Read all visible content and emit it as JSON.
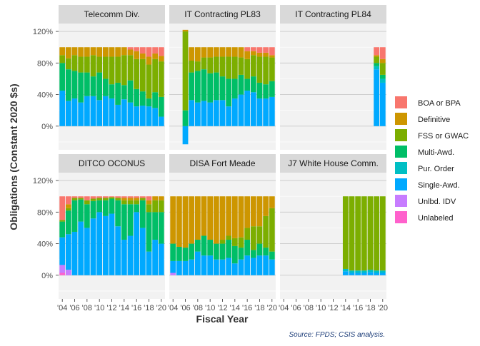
{
  "chart_data": {
    "type": "bar",
    "stacked": true,
    "faceted": true,
    "xlabel": "Fiscal Year",
    "ylabel": "Obligations (Constant 2020 $s)",
    "caption": "Source: FPDS; CSIS analysis.",
    "ylim": [
      -0.3,
      1.3
    ],
    "y_ticks": [
      0,
      0.4,
      0.8,
      1.2
    ],
    "y_tick_labels": [
      "0%",
      "40%",
      "80%",
      "120%"
    ],
    "x": [
      2004,
      2005,
      2006,
      2007,
      2008,
      2009,
      2010,
      2011,
      2012,
      2013,
      2014,
      2015,
      2016,
      2017,
      2018,
      2019,
      2020
    ],
    "x_ticks": [
      2004,
      2006,
      2008,
      2010,
      2012,
      2014,
      2016,
      2018,
      2020
    ],
    "x_tick_labels": [
      "'04",
      "'06",
      "'08",
      "'10",
      "'12",
      "'14",
      "'16",
      "'18",
      "'20"
    ],
    "legend": {
      "position": "right",
      "entries": [
        "BOA or BPA",
        "Definitive",
        "FSS or GWAC",
        "Multi-Awd.",
        "Pur. Order",
        "Single-Awd.",
        "Unlbd. IDV",
        "Unlabeled"
      ]
    },
    "colors": {
      "BOA or BPA": "#F8766D",
      "Definitive": "#CD9600",
      "FSS or GWAC": "#7CAE00",
      "Multi-Awd.": "#00BE67",
      "Pur. Order": "#00BFC4",
      "Single-Awd.": "#00A9FF",
      "Unlbd. IDV": "#C77CFF",
      "Unlabeled": "#FF61CC"
    },
    "panels": [
      {
        "title": "Telecomm Div.",
        "series": {
          "Unlabeled": [
            0,
            0,
            0,
            0,
            0,
            0,
            0,
            0,
            0,
            0,
            0,
            0,
            0,
            0,
            0,
            0,
            0
          ],
          "Unlbd. IDV": [
            0,
            0,
            0,
            0,
            0,
            0,
            0,
            0,
            0,
            0,
            0,
            0,
            0,
            0,
            0,
            0,
            0
          ],
          "Single-Awd.": [
            0.45,
            0.32,
            0.35,
            0.3,
            0.38,
            0.38,
            0.33,
            0.38,
            0.35,
            0.27,
            0.34,
            0.3,
            0.25,
            0.26,
            0.25,
            0.23,
            0.12
          ],
          "Pur. Order": [
            0,
            0,
            0,
            0,
            0,
            0,
            0,
            0,
            0,
            0,
            0,
            0,
            0,
            0,
            0,
            0,
            0
          ],
          "Multi-Awd.": [
            0.35,
            0.4,
            0.35,
            0.38,
            0.3,
            0.25,
            0.35,
            0.22,
            0.18,
            0.28,
            0.18,
            0.28,
            0.22,
            0.18,
            0.1,
            0.2,
            0.25
          ],
          "FSS or GWAC": [
            0.1,
            0.14,
            0.2,
            0.2,
            0.2,
            0.27,
            0.2,
            0.28,
            0.35,
            0.33,
            0.38,
            0.32,
            0.38,
            0.41,
            0.43,
            0.42,
            0.45
          ],
          "Definitive": [
            0.1,
            0.14,
            0.1,
            0.12,
            0.12,
            0.1,
            0.12,
            0.12,
            0.12,
            0.12,
            0.1,
            0.07,
            0.1,
            0.07,
            0.1,
            0.07,
            0.07
          ],
          "BOA or BPA": [
            0,
            0,
            0,
            0,
            0,
            0,
            0,
            0,
            0,
            0,
            0,
            0.03,
            0.05,
            0.08,
            0.12,
            0.08,
            0.11
          ]
        }
      },
      {
        "title": "IT Contracting PL83",
        "series": {
          "Unlabeled": [
            0,
            0,
            0,
            0,
            0,
            0,
            0,
            0,
            0,
            0,
            0,
            0,
            0,
            0,
            0,
            0,
            0
          ],
          "Unlbd. IDV": [
            0,
            0,
            0,
            0,
            0,
            0,
            0,
            0,
            0,
            0,
            0,
            0,
            0,
            0,
            0,
            0,
            0
          ],
          "Single-Awd.": [
            0,
            0,
            -0.23,
            0.33,
            0.3,
            0.32,
            0.3,
            0.33,
            0.33,
            0.25,
            0.35,
            0.4,
            0.45,
            0.43,
            0.35,
            0.35,
            0.37
          ],
          "Pur. Order": [
            0,
            0,
            0,
            0,
            0,
            0,
            0,
            0,
            0,
            0,
            0,
            0,
            0,
            0,
            0,
            0,
            0
          ],
          "Multi-Awd.": [
            0,
            0,
            0.2,
            0.35,
            0.4,
            0.4,
            0.37,
            0.35,
            0.3,
            0.35,
            0.25,
            0.25,
            0.15,
            0.2,
            0.2,
            0.18,
            0.2
          ],
          "FSS or GWAC": [
            0,
            0,
            1.0,
            0.15,
            0.12,
            0.15,
            0.2,
            0.2,
            0.25,
            0.28,
            0.28,
            0.22,
            0.25,
            0.27,
            0.33,
            0.35,
            0.3
          ],
          "Definitive": [
            0,
            0,
            0.02,
            0.17,
            0.18,
            0.13,
            0.13,
            0.12,
            0.12,
            0.12,
            0.12,
            0.13,
            0.1,
            0.05,
            0.05,
            0.05,
            0.03
          ],
          "BOA or BPA": [
            0,
            0,
            0,
            0,
            0,
            0,
            0,
            0,
            0,
            0,
            0,
            0,
            0.05,
            0.05,
            0.07,
            0.07,
            0.1
          ]
        }
      },
      {
        "title": "IT Contracting PL84",
        "series": {
          "Unlabeled": [
            0,
            0,
            0,
            0,
            0,
            0,
            0,
            0,
            0,
            0,
            0,
            0,
            0,
            0,
            0,
            0,
            0
          ],
          "Unlbd. IDV": [
            0,
            0,
            0,
            0,
            0,
            0,
            0,
            0,
            0,
            0,
            0,
            0,
            0,
            0,
            0,
            0,
            0
          ],
          "Single-Awd.": [
            0,
            0,
            0,
            0,
            0,
            0,
            0,
            0,
            0,
            0,
            0,
            0,
            0,
            0,
            0,
            0.72,
            0.55
          ],
          "Pur. Order": [
            0,
            0,
            0,
            0,
            0,
            0,
            0,
            0,
            0,
            0,
            0,
            0,
            0,
            0,
            0,
            0.04,
            0.05
          ],
          "Multi-Awd.": [
            0,
            0,
            0,
            0,
            0,
            0,
            0,
            0,
            0,
            0,
            0,
            0,
            0,
            0,
            0,
            0.04,
            0.05
          ],
          "FSS or GWAC": [
            0,
            0,
            0,
            0,
            0,
            0,
            0,
            0,
            0,
            0,
            0,
            0,
            0,
            0,
            0,
            0.08,
            0.15
          ],
          "Definitive": [
            0,
            0,
            0,
            0,
            0,
            0,
            0,
            0,
            0,
            0,
            0,
            0,
            0,
            0,
            0,
            0.02,
            0.05
          ],
          "BOA or BPA": [
            0,
            0,
            0,
            0,
            0,
            0,
            0,
            0,
            0,
            0,
            0,
            0,
            0,
            0,
            0,
            0.1,
            0.15
          ]
        }
      },
      {
        "title": "DITCO OCONUS",
        "series": {
          "Unlabeled": [
            0.03,
            0,
            0,
            0,
            0,
            0,
            0,
            0,
            0,
            0,
            0,
            0,
            0,
            0,
            0,
            0,
            0
          ],
          "Unlbd. IDV": [
            0.1,
            0.07,
            0,
            0,
            0,
            0,
            0,
            0,
            0,
            0,
            0,
            0,
            0,
            0,
            0,
            0,
            0
          ],
          "Single-Awd.": [
            0.35,
            0.45,
            0.55,
            0.68,
            0.6,
            0.72,
            0.8,
            0.75,
            0.78,
            0.62,
            0.45,
            0.5,
            0.8,
            0.6,
            0.3,
            0.45,
            0.4
          ],
          "Pur. Order": [
            0,
            0,
            0,
            0,
            0,
            0,
            0,
            0,
            0,
            0,
            0,
            0,
            0,
            0,
            0,
            0,
            0
          ],
          "Multi-Awd.": [
            0.2,
            0.3,
            0.4,
            0.28,
            0.3,
            0.22,
            0.15,
            0.2,
            0.19,
            0.33,
            0.45,
            0.4,
            0.1,
            0.35,
            0.5,
            0.35,
            0.4
          ],
          "FSS or GWAC": [
            0.02,
            0.03,
            0.03,
            0.02,
            0.05,
            0.03,
            0.03,
            0.03,
            0.02,
            0.03,
            0.05,
            0.05,
            0.05,
            0.03,
            0.1,
            0.15,
            0.15
          ],
          "Definitive": [
            0,
            0.05,
            0,
            0,
            0,
            0,
            0,
            0,
            0,
            0,
            0.03,
            0.03,
            0.03,
            0,
            0.05,
            0.05,
            0.05
          ],
          "BOA or BPA": [
            0.3,
            0.1,
            0.02,
            0.02,
            0.05,
            0.03,
            0.02,
            0.02,
            0.01,
            0.02,
            0.02,
            0.02,
            0.02,
            0.02,
            0.05,
            0,
            0
          ]
        }
      },
      {
        "title": "DISA Fort Meade",
        "series": {
          "Unlabeled": [
            0,
            0,
            0,
            0,
            0,
            0,
            0,
            0,
            0,
            0,
            0,
            0,
            0,
            0,
            0,
            0,
            0
          ],
          "Unlbd. IDV": [
            0.03,
            0,
            0,
            0,
            0,
            0,
            0,
            0,
            0,
            0,
            0,
            0,
            0,
            0,
            0,
            0,
            0
          ],
          "Single-Awd.": [
            0.15,
            0.18,
            0.18,
            0.2,
            0.3,
            0.25,
            0.25,
            0.2,
            0.2,
            0.22,
            0.15,
            0.2,
            0.25,
            0.22,
            0.25,
            0.25,
            0.2
          ],
          "Pur. Order": [
            0,
            0,
            0,
            0,
            0,
            0,
            0,
            0,
            0,
            0,
            0,
            0,
            0,
            0,
            0,
            0,
            0
          ],
          "Multi-Awd.": [
            0.22,
            0.18,
            0.17,
            0.2,
            0.15,
            0.25,
            0.2,
            0.2,
            0.2,
            0.23,
            0.22,
            0.15,
            0.2,
            0.1,
            0.15,
            0.1,
            0.1
          ],
          "FSS or GWAC": [
            0,
            0,
            0,
            0,
            0,
            0,
            0,
            0,
            0.05,
            0.05,
            0.1,
            0.13,
            0.15,
            0.3,
            0.22,
            0.4,
            0.55
          ],
          "Definitive": [
            0.6,
            0.64,
            0.65,
            0.6,
            0.55,
            0.5,
            0.55,
            0.6,
            0.55,
            0.5,
            0.53,
            0.52,
            0.4,
            0.38,
            0.38,
            0.25,
            0.15
          ],
          "BOA or BPA": [
            0,
            0,
            0,
            0,
            0,
            0,
            0,
            0,
            0,
            0,
            0,
            0,
            0,
            0,
            0,
            0,
            0
          ]
        }
      },
      {
        "title": "J7 White House Comm.",
        "series": {
          "Unlabeled": [
            0,
            0,
            0,
            0,
            0,
            0,
            0,
            0,
            0,
            0,
            0,
            0,
            0,
            0,
            0,
            0,
            0
          ],
          "Unlbd. IDV": [
            0,
            0,
            0,
            0,
            0,
            0,
            0,
            0,
            0,
            0,
            0,
            0,
            0,
            0,
            0,
            0,
            0
          ],
          "Single-Awd.": [
            0,
            0,
            0,
            0,
            0,
            0,
            0,
            0,
            0,
            0,
            0.05,
            0.03,
            0.03,
            0.03,
            0.04,
            0.03,
            0.03
          ],
          "Pur. Order": [
            0,
            0,
            0,
            0,
            0,
            0,
            0,
            0,
            0,
            0,
            0.03,
            0.03,
            0.03,
            0.03,
            0.03,
            0.03,
            0.03
          ],
          "Multi-Awd.": [
            0,
            0,
            0,
            0,
            0,
            0,
            0,
            0,
            0,
            0,
            0,
            0,
            0,
            0,
            0,
            0,
            0
          ],
          "FSS or GWAC": [
            0,
            0,
            0,
            0,
            0,
            0,
            0,
            0,
            0,
            0,
            0.92,
            0.94,
            0.94,
            0.94,
            0.93,
            0.94,
            0.94
          ],
          "Definitive": [
            0,
            0,
            0,
            0,
            0,
            0,
            0,
            0,
            0,
            0,
            0,
            0,
            0,
            0,
            0,
            0,
            0
          ],
          "BOA or BPA": [
            0,
            0,
            0,
            0,
            0,
            0,
            0,
            0,
            0,
            0,
            0,
            0,
            0,
            0,
            0,
            0,
            0
          ]
        }
      }
    ]
  }
}
